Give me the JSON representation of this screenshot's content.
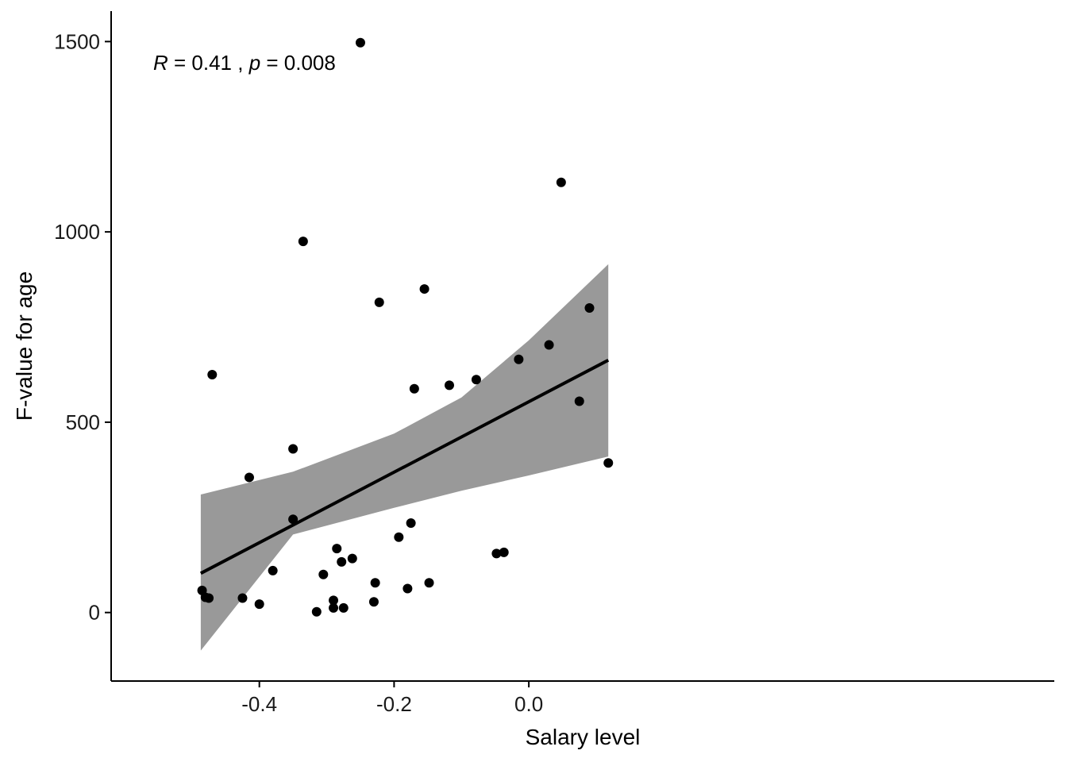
{
  "chart_data": {
    "type": "scatter",
    "xlabel": "Salary level",
    "ylabel": "F-value for age",
    "xlim": [
      -0.62,
      0.78
    ],
    "ylim": [
      -180,
      1580
    ],
    "x_ticks": [
      -0.4,
      -0.2,
      0.0
    ],
    "x_tick_labels": [
      "-0.4",
      "-0.2",
      "0.0"
    ],
    "y_ticks": [
      0,
      500,
      1000,
      1500
    ],
    "y_tick_labels": [
      "0",
      "500",
      "1000",
      "1500"
    ],
    "grid": false,
    "annotation": {
      "r_label": "R",
      "r_value": " = 0.41 , ",
      "p_label": "p",
      "p_value": " = 0.008"
    },
    "colors": {
      "points": "#000000",
      "line": "#000000",
      "ribbon": "#999999",
      "axis": "#000000"
    },
    "points": [
      {
        "x": -0.485,
        "y": 58
      },
      {
        "x": -0.48,
        "y": 40
      },
      {
        "x": -0.475,
        "y": 38
      },
      {
        "x": -0.47,
        "y": 625
      },
      {
        "x": -0.425,
        "y": 38
      },
      {
        "x": -0.415,
        "y": 355
      },
      {
        "x": -0.4,
        "y": 22
      },
      {
        "x": -0.38,
        "y": 110
      },
      {
        "x": -0.35,
        "y": 430
      },
      {
        "x": -0.35,
        "y": 245
      },
      {
        "x": -0.335,
        "y": 975
      },
      {
        "x": -0.315,
        "y": 2
      },
      {
        "x": -0.305,
        "y": 100
      },
      {
        "x": -0.29,
        "y": 32
      },
      {
        "x": -0.29,
        "y": 12
      },
      {
        "x": -0.285,
        "y": 168
      },
      {
        "x": -0.278,
        "y": 133
      },
      {
        "x": -0.275,
        "y": 12
      },
      {
        "x": -0.262,
        "y": 142
      },
      {
        "x": -0.25,
        "y": 1497
      },
      {
        "x": -0.228,
        "y": 78
      },
      {
        "x": -0.23,
        "y": 28
      },
      {
        "x": -0.222,
        "y": 815
      },
      {
        "x": -0.193,
        "y": 198
      },
      {
        "x": -0.18,
        "y": 63
      },
      {
        "x": -0.175,
        "y": 235
      },
      {
        "x": -0.17,
        "y": 588
      },
      {
        "x": -0.155,
        "y": 850
      },
      {
        "x": -0.148,
        "y": 78
      },
      {
        "x": -0.118,
        "y": 597
      },
      {
        "x": -0.078,
        "y": 612
      },
      {
        "x": -0.048,
        "y": 155
      },
      {
        "x": -0.037,
        "y": 158
      },
      {
        "x": -0.015,
        "y": 665
      },
      {
        "x": 0.03,
        "y": 703
      },
      {
        "x": 0.048,
        "y": 1130
      },
      {
        "x": 0.075,
        "y": 555
      },
      {
        "x": 0.09,
        "y": 800
      },
      {
        "x": 0.118,
        "y": 393
      }
    ],
    "fit": {
      "x": [
        -0.487,
        0.118
      ],
      "y": [
        103,
        663
      ]
    },
    "confidence_band": {
      "x": [
        -0.487,
        -0.35,
        -0.2,
        -0.1,
        0.0,
        0.118
      ],
      "upper": [
        310,
        370,
        470,
        565,
        715,
        915
      ],
      "lower": [
        -100,
        205,
        275,
        320,
        360,
        410
      ]
    }
  }
}
